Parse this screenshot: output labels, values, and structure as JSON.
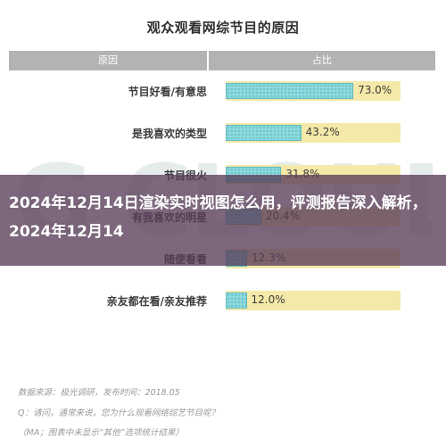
{
  "chart_data": {
    "type": "bar",
    "title": "观众观看网综节目的原因",
    "columns": [
      "原因",
      "占比"
    ],
    "categories": [
      "节目好看/有意思",
      "是我喜欢的类型",
      "节目很火",
      "有我喜欢的明星",
      "随便看看",
      "亲友都在看/亲友推荐"
    ],
    "values": [
      73.0,
      43.2,
      31.8,
      20.4,
      12.3,
      12.0
    ],
    "labels": [
      "73.0%",
      "43.2%",
      "31.8%",
      "20.4%",
      "12.3%",
      "12.0%"
    ],
    "xlim": [
      0,
      100
    ],
    "legend": "none",
    "grid": false
  },
  "notes": {
    "source": "数据来源：极光调研，发布时间：2018.05",
    "question": "Q：请问，通常来说，您为什么观看网络综艺节目呢？",
    "remark": "（MA；图表中未显示“其他”选项统计结果）"
  },
  "overlay": {
    "headline": "2024年12月14日渲染实时视图怎么用，评测报告深入解析，2024年12月14"
  },
  "colors": {
    "bar_fill": "#8fd8dc",
    "bar_track": "#f4e9a8",
    "header": "#b3b3b3",
    "overlay": "#583c58"
  }
}
